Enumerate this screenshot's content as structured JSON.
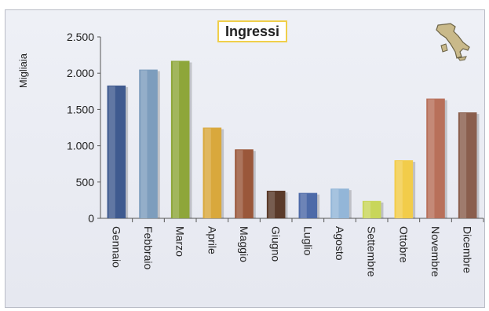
{
  "chart_data": {
    "type": "bar",
    "title": "Ingressi",
    "ylabel": "Migliaia",
    "xlabel": "",
    "ylim": [
      0,
      2500
    ],
    "yticks": [
      0,
      500,
      1000,
      1500,
      2000,
      2500
    ],
    "ytick_labels": [
      "0",
      "500",
      "1.000",
      "1.500",
      "2.000",
      "2.500"
    ],
    "grid": false,
    "legend": "none",
    "categories": [
      "Gennaio",
      "Febbraio",
      "Marzo",
      "Aprile",
      "Maggio",
      "Giugno",
      "Luglio",
      "Agosto",
      "Settembre",
      "Ottobre",
      "Novembre",
      "Dicembre"
    ],
    "values": [
      1830,
      2050,
      2170,
      1250,
      950,
      380,
      350,
      410,
      240,
      800,
      1650,
      1460
    ],
    "colors": [
      "#3f5a8f",
      "#7d9dbd",
      "#8ea63a",
      "#d9a83c",
      "#9a573a",
      "#5a3a2a",
      "#4d6aa8",
      "#93b6d8",
      "#c8d65a",
      "#f2cc4a",
      "#b8705a",
      "#8a5e4d"
    ]
  },
  "decoration": {
    "icon": "italy-map-icon"
  }
}
